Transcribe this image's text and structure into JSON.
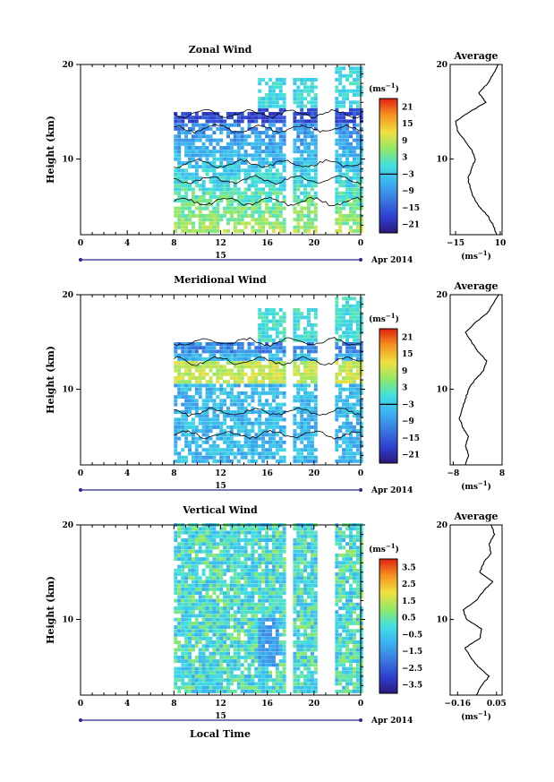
{
  "chart_data": [
    {
      "type": "heatmap",
      "title": "Zonal Wind",
      "ylabel": "Height (km)",
      "ylim": [
        2,
        20
      ],
      "yticks": [
        "10",
        "20"
      ],
      "xlim": [
        0,
        24
      ],
      "xticks": [
        "0",
        "4",
        "8",
        "12",
        "16",
        "20",
        "0"
      ],
      "date_label": "15",
      "date_suffix": "Apr 2014",
      "colorbar": {
        "unit_base": "(ms",
        "unit_exp": "−1",
        "unit_close": ")",
        "ticks": [
          "21",
          "15",
          "9",
          "3",
          "−3",
          "−9",
          "−15",
          "−21"
        ],
        "vmin": -24,
        "vmax": 24,
        "zero_line": true
      },
      "profile": {
        "title": "Average",
        "xticks": [
          "−15",
          "10"
        ],
        "xlim": [
          -18,
          11
        ],
        "xunit_base": "(ms",
        "xunit_exp": "−1",
        "xunit_close": ")",
        "heights": [
          2,
          3,
          4,
          5,
          6,
          7,
          8,
          9,
          10,
          11,
          12,
          13,
          14,
          15,
          16,
          17,
          18,
          19,
          20
        ],
        "values": [
          8,
          6,
          3,
          -2,
          -5,
          -7,
          -8,
          -6,
          -4,
          -6,
          -10,
          -14,
          -15,
          -7,
          2,
          -2,
          3,
          6,
          9
        ]
      }
    },
    {
      "type": "heatmap",
      "title": "Meridional Wind",
      "ylabel": "Height (km)",
      "ylim": [
        2,
        20
      ],
      "yticks": [
        "10",
        "20"
      ],
      "xlim": [
        0,
        24
      ],
      "xticks": [
        "0",
        "4",
        "8",
        "12",
        "16",
        "20",
        "0"
      ],
      "date_label": "15",
      "date_suffix": "Apr 2014",
      "colorbar": {
        "unit_base": "(ms",
        "unit_exp": "−1",
        "unit_close": ")",
        "ticks": [
          "21",
          "15",
          "9",
          "3",
          "−3",
          "−9",
          "−15",
          "−21"
        ],
        "vmin": -24,
        "vmax": 24,
        "zero_line": true
      },
      "profile": {
        "title": "Average",
        "xticks": [
          "−8",
          "8"
        ],
        "xlim": [
          -9,
          8
        ],
        "xunit_base": "(ms",
        "xunit_exp": "−1",
        "xunit_close": ")",
        "heights": [
          2,
          3,
          4,
          5,
          6,
          7,
          8,
          9,
          10,
          11,
          12,
          13,
          14,
          15,
          16,
          17,
          18,
          19,
          20
        ],
        "values": [
          -4,
          -3,
          -4,
          -3,
          -5,
          -6,
          -5,
          -4,
          -3,
          -1,
          2,
          3,
          0,
          -2,
          -4,
          -1,
          3,
          5,
          7
        ]
      }
    },
    {
      "type": "heatmap",
      "title": "Vertical Wind",
      "ylabel": "Height (km)",
      "ylim": [
        2,
        20
      ],
      "yticks": [
        "10",
        "20"
      ],
      "xlim": [
        0,
        24
      ],
      "xticks": [
        "0",
        "4",
        "8",
        "12",
        "16",
        "20",
        "0"
      ],
      "date_label": "15",
      "date_suffix": "Apr 2014",
      "xlabel": "Local Time",
      "colorbar": {
        "unit_base": "(ms",
        "unit_exp": "−1",
        "unit_close": ")",
        "ticks": [
          "3.5",
          "2.5",
          "1.5",
          "0.5",
          "−0.5",
          "−1.5",
          "−2.5",
          "−3.5"
        ],
        "vmin": -4,
        "vmax": 4,
        "zero_line": false
      },
      "profile": {
        "title": "Average",
        "xticks": [
          "−0.16",
          "0.05"
        ],
        "xlim": [
          -0.2,
          0.08
        ],
        "xunit_base": "(ms",
        "xunit_exp": "−1",
        "xunit_close": ")",
        "heights": [
          2,
          3,
          4,
          5,
          6,
          7,
          8,
          9,
          10,
          11,
          12,
          13,
          14,
          15,
          16,
          17,
          18,
          19,
          20
        ],
        "values": [
          -0.06,
          -0.03,
          0.01,
          -0.05,
          -0.09,
          -0.12,
          -0.04,
          -0.03,
          -0.11,
          -0.13,
          -0.06,
          -0.02,
          0.03,
          -0.04,
          -0.02,
          0.02,
          0.01,
          0.04,
          0.02
        ]
      }
    }
  ]
}
